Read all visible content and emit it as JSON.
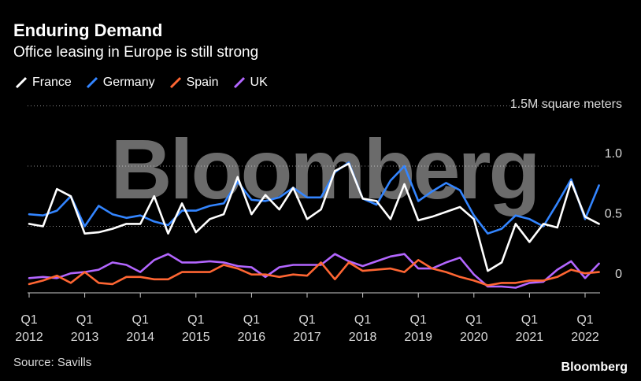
{
  "header": {
    "title": "Enduring Demand",
    "subtitle": "Office leasing in Europe is still strong"
  },
  "footer": {
    "source": "Source: Savills",
    "brand": "Bloomberg"
  },
  "watermark": "Bloomberg",
  "chart_data": {
    "type": "line",
    "title": "Enduring Demand",
    "subtitle": "Office leasing in Europe is still strong",
    "unit_label": "1.5M square meters",
    "legend_position": "top-left",
    "grid": true,
    "ylim": [
      0,
      1.5
    ],
    "y_ticks": [
      {
        "v": 0,
        "label": "0"
      },
      {
        "v": 0.5,
        "label": "0.5"
      },
      {
        "v": 1.0,
        "label": "1.0"
      }
    ],
    "x_ticks": [
      {
        "q": "Q1",
        "year": "2012",
        "i": 0
      },
      {
        "q": "Q1",
        "year": "2013",
        "i": 4
      },
      {
        "q": "Q1",
        "year": "2014",
        "i": 8
      },
      {
        "q": "Q1",
        "year": "2015",
        "i": 12
      },
      {
        "q": "Q1",
        "year": "2016",
        "i": 16
      },
      {
        "q": "Q1",
        "year": "2017",
        "i": 20
      },
      {
        "q": "Q1",
        "year": "2018",
        "i": 24
      },
      {
        "q": "Q1",
        "year": "2019",
        "i": 28
      },
      {
        "q": "Q1",
        "year": "2020",
        "i": 32
      },
      {
        "q": "Q1",
        "year": "2021",
        "i": 36
      },
      {
        "q": "Q1",
        "year": "2022",
        "i": 40
      }
    ],
    "x_first": "2012 Q1",
    "x_last": "2022 Q2",
    "series": [
      {
        "name": "France",
        "color": "#ffffff",
        "values": [
          0.52,
          0.5,
          0.81,
          0.75,
          0.44,
          0.45,
          0.48,
          0.52,
          0.52,
          0.75,
          0.44,
          0.69,
          0.45,
          0.56,
          0.6,
          0.91,
          0.6,
          0.76,
          0.64,
          0.82,
          0.56,
          0.64,
          0.96,
          1.02,
          0.73,
          0.71,
          0.56,
          0.85,
          0.55,
          0.58,
          0.62,
          0.66,
          0.56,
          0.13,
          0.2,
          0.52,
          0.37,
          0.52,
          0.49,
          0.87,
          0.58,
          0.52
        ]
      },
      {
        "name": "Germany",
        "color": "#3385ff",
        "values": [
          0.6,
          0.59,
          0.63,
          0.75,
          0.5,
          0.67,
          0.6,
          0.57,
          0.59,
          0.54,
          0.51,
          0.63,
          0.63,
          0.67,
          0.69,
          0.87,
          0.72,
          0.71,
          0.74,
          0.82,
          0.74,
          0.74,
          0.95,
          1.03,
          0.73,
          0.68,
          0.88,
          1.0,
          0.71,
          0.79,
          0.86,
          0.8,
          0.59,
          0.44,
          0.48,
          0.59,
          0.56,
          0.5,
          0.69,
          0.89,
          0.56,
          0.84
        ]
      },
      {
        "name": "Spain",
        "color": "#ff6633",
        "values": [
          0.02,
          0.05,
          0.09,
          0.03,
          0.12,
          0.03,
          0.02,
          0.08,
          0.08,
          0.06,
          0.06,
          0.12,
          0.12,
          0.12,
          0.18,
          0.15,
          0.1,
          0.1,
          0.08,
          0.1,
          0.09,
          0.2,
          0.06,
          0.2,
          0.13,
          0.14,
          0.15,
          0.12,
          0.22,
          0.15,
          0.12,
          0.08,
          0.05,
          0.01,
          0.03,
          0.03,
          0.05,
          0.05,
          0.08,
          0.14,
          0.11,
          0.12
        ]
      },
      {
        "name": "UK",
        "color": "#b366ff",
        "values": [
          0.07,
          0.08,
          0.07,
          0.11,
          0.12,
          0.14,
          0.2,
          0.18,
          0.12,
          0.22,
          0.27,
          0.2,
          0.2,
          0.21,
          0.2,
          0.17,
          0.16,
          0.08,
          0.16,
          0.18,
          0.18,
          0.18,
          0.27,
          0.21,
          0.17,
          0.21,
          0.25,
          0.27,
          0.15,
          0.15,
          0.2,
          0.24,
          0.1,
          0.0,
          0.0,
          -0.01,
          0.03,
          0.04,
          0.14,
          0.21,
          0.07,
          0.19
        ]
      }
    ]
  }
}
